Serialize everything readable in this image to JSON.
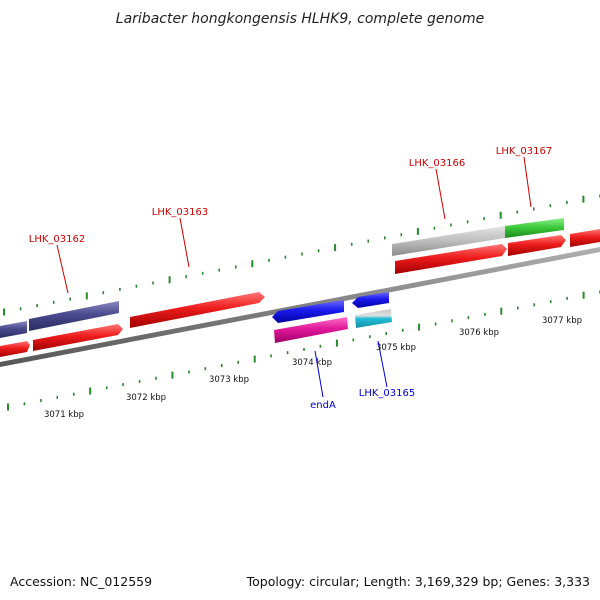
{
  "title": "Laribacter hongkongensis HLHK9, complete genome",
  "footer": {
    "accession": "Accession: NC_012559",
    "summary": "Topology: circular; Length: 3,169,329 bp; Genes: 3,333"
  },
  "scale": {
    "unit": "kbp",
    "ticks": [
      "3071 kbp",
      "3072 kbp",
      "3073 kbp",
      "3074 kbp",
      "3075 kbp",
      "3076 kbp",
      "3077 kbp"
    ]
  },
  "gene_labels": [
    {
      "name": "LHK_03162",
      "color": "#cc0000"
    },
    {
      "name": "LHK_03163",
      "color": "#cc0000"
    },
    {
      "name": "LHK_03166",
      "color": "#cc0000"
    },
    {
      "name": "LHK_03167",
      "color": "#cc0000"
    },
    {
      "name": "endA",
      "color": "#0000cc"
    },
    {
      "name": "LHK_03165",
      "color": "#0000cc"
    }
  ],
  "colors": {
    "cds": "#ee1c1c",
    "gene_slate": "#4a4a8e",
    "gene_blue": "#1a1aee",
    "gene_magenta": "#e0189a",
    "gene_cyan": "#22bcd6",
    "gene_gray": "#bdbdbd",
    "gene_green": "#3ccc3c",
    "backbone": "#808080",
    "tick": "#2a8a2a"
  }
}
